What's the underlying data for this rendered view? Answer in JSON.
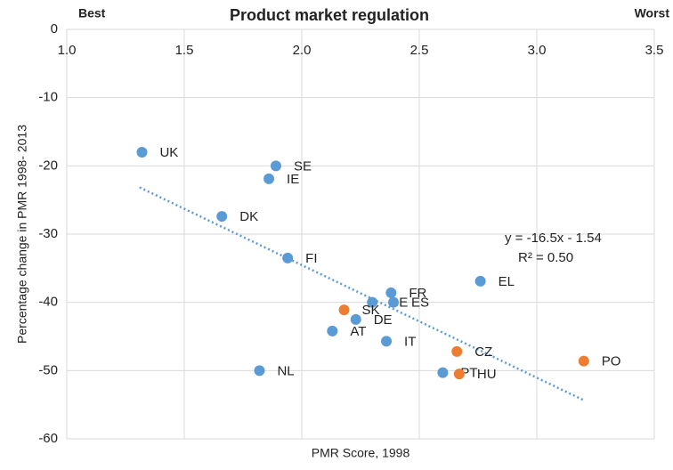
{
  "chart_data": {
    "type": "scatter",
    "title": "Product market regulation",
    "left_note": "Best",
    "right_note": "Worst",
    "x_label": "PMR Score, 1998",
    "y_label": "Percentage change in PMR 1998- 2013",
    "xlim": [
      1,
      3.5
    ],
    "xticks": [
      {
        "value": 1,
        "label": "1.0"
      },
      1.5,
      {
        "value": 2,
        "label": "2.0"
      },
      2.5,
      {
        "value": 3,
        "label": "3.0"
      },
      3.5
    ],
    "ylim": [
      -60,
      0
    ],
    "yticks": [
      0,
      -10,
      -20,
      -30,
      -40,
      -50,
      -60
    ],
    "grid": true,
    "points": [
      {
        "label": "UK",
        "x": 1.32,
        "y": -18.0,
        "color": "#5b9bd5"
      },
      {
        "label": "SE",
        "x": 1.89,
        "y": -20.0,
        "color": "#5b9bd5"
      },
      {
        "label": "IE",
        "x": 1.86,
        "y": -21.9,
        "color": "#5b9bd5"
      },
      {
        "label": "DK",
        "x": 1.66,
        "y": -27.4,
        "color": "#5b9bd5"
      },
      {
        "label": "FI",
        "x": 1.94,
        "y": -33.5,
        "color": "#5b9bd5"
      },
      {
        "label": "FR",
        "x": 2.38,
        "y": -38.6,
        "color": "#5b9bd5"
      },
      {
        "label": "BE",
        "x": 2.3,
        "y": -40.0,
        "color": "#5b9bd5"
      },
      {
        "label": "ES",
        "x": 2.39,
        "y": -40.0,
        "color": "#5b9bd5"
      },
      {
        "label": "SK",
        "x": 2.18,
        "y": -41.1,
        "color": "#ed7d31"
      },
      {
        "label": "DE",
        "x": 2.23,
        "y": -42.5,
        "color": "#5b9bd5"
      },
      {
        "label": "AT",
        "x": 2.13,
        "y": -44.2,
        "color": "#5b9bd5"
      },
      {
        "label": "IT",
        "x": 2.36,
        "y": -45.7,
        "color": "#5b9bd5"
      },
      {
        "label": "EL",
        "x": 2.76,
        "y": -36.9,
        "color": "#5b9bd5"
      },
      {
        "label": "CZ",
        "x": 2.66,
        "y": -47.2,
        "color": "#ed7d31"
      },
      {
        "label": "PT",
        "x": 2.6,
        "y": -50.3,
        "color": "#5b9bd5"
      },
      {
        "label": "HU",
        "x": 2.67,
        "y": -50.5,
        "color": "#ed7d31"
      },
      {
        "label": "PO",
        "x": 3.2,
        "y": -48.6,
        "color": "#ed7d31"
      },
      {
        "label": "NL",
        "x": 1.82,
        "y": -50.0,
        "color": "#5b9bd5"
      }
    ],
    "trendline": {
      "slope": -16.5,
      "intercept": -1.54,
      "x": [
        1.31,
        3.2
      ],
      "color": "#5b9bd5",
      "equation": "y = -16.5x - 1.54",
      "r2_label": "R² = 0.50"
    }
  }
}
